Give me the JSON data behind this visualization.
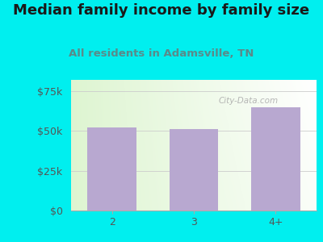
{
  "title": "Median family income by family size",
  "subtitle": "All residents in Adamsville, TN",
  "categories": [
    "2",
    "3",
    "4+"
  ],
  "values": [
    52000,
    51000,
    65000
  ],
  "bar_color": "#b8a8d0",
  "background_color": "#00efef",
  "plot_bg_top_left": "#e8f5e0",
  "plot_bg_top_right": "#ffffff",
  "plot_bg_bottom": "#e8f5e0",
  "title_color": "#1a1a1a",
  "subtitle_color": "#5a8a8a",
  "axis_label_color": "#555555",
  "yticks": [
    0,
    25000,
    50000,
    75000
  ],
  "ytick_labels": [
    "$0",
    "$25k",
    "$50k",
    "$75k"
  ],
  "ylim": [
    0,
    82000
  ],
  "title_fontsize": 13,
  "subtitle_fontsize": 9.5,
  "tick_fontsize": 9,
  "watermark_text": "City-Data.com",
  "bar_edge_color": "none"
}
